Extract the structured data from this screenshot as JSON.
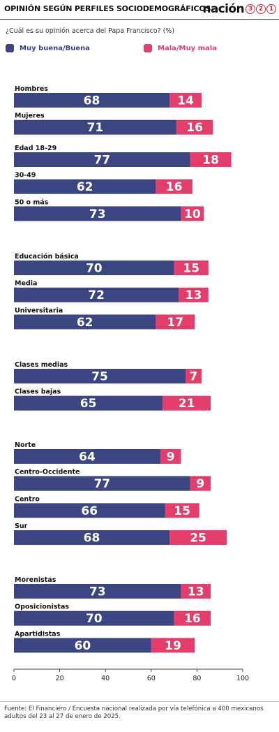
{
  "header": {
    "title": "OPINIÓN SEGÚN PERFILES SOCIODEMOGRÁFICOS",
    "brand_word": "nación",
    "brand_digits": [
      "3",
      "2",
      "1"
    ]
  },
  "question": "¿Cuál es su opinión acerca del Papa Francisco? (%)",
  "legend": [
    {
      "label": "Muy buena/Buena",
      "color": "#3a4582"
    },
    {
      "label": "Mala/Muy mala",
      "color": "#e23d6b"
    }
  ],
  "chart_data": {
    "type": "bar",
    "orientation": "horizontal",
    "stacked": true,
    "xlim": [
      0,
      100
    ],
    "xticks": [
      0,
      20,
      40,
      60,
      80,
      100
    ],
    "series_colors": {
      "positive": "#3a4582",
      "negative": "#e23d6b"
    },
    "rows": [
      {
        "label": "Hombres",
        "positive": 68,
        "negative": 14
      },
      {
        "label": "Mujeres",
        "positive": 71,
        "negative": 16
      },
      {
        "label": "Edad 18-29",
        "positive": 77,
        "negative": 18
      },
      {
        "label": "30-49",
        "positive": 62,
        "negative": 16
      },
      {
        "label": "50 o más",
        "positive": 73,
        "negative": 10
      },
      {
        "label": "Educación básica",
        "positive": 70,
        "negative": 15
      },
      {
        "label": "Media",
        "positive": 72,
        "negative": 13
      },
      {
        "label": "Universitaria",
        "positive": 62,
        "negative": 17
      },
      {
        "label": "Clases medias",
        "positive": 75,
        "negative": 7
      },
      {
        "label": "Clases bajas",
        "positive": 65,
        "negative": 21
      },
      {
        "label": "Norte",
        "positive": 64,
        "negative": 9
      },
      {
        "label": "Centro-Occidente",
        "positive": 77,
        "negative": 9
      },
      {
        "label": "Centro",
        "positive": 66,
        "negative": 15
      },
      {
        "label": "Sur",
        "positive": 68,
        "negative": 25
      },
      {
        "label": "Morenistas",
        "positive": 73,
        "negative": 13
      },
      {
        "label": "Oposicionistas",
        "positive": 70,
        "negative": 16
      },
      {
        "label": "Apartidistas",
        "positive": 60,
        "negative": 19
      }
    ]
  },
  "source": "Fuente: El Financiero / Encuesta nacional realizada por vía telefónica a 400 mexicanos adultos del 23 al 27 de enero de 2025."
}
